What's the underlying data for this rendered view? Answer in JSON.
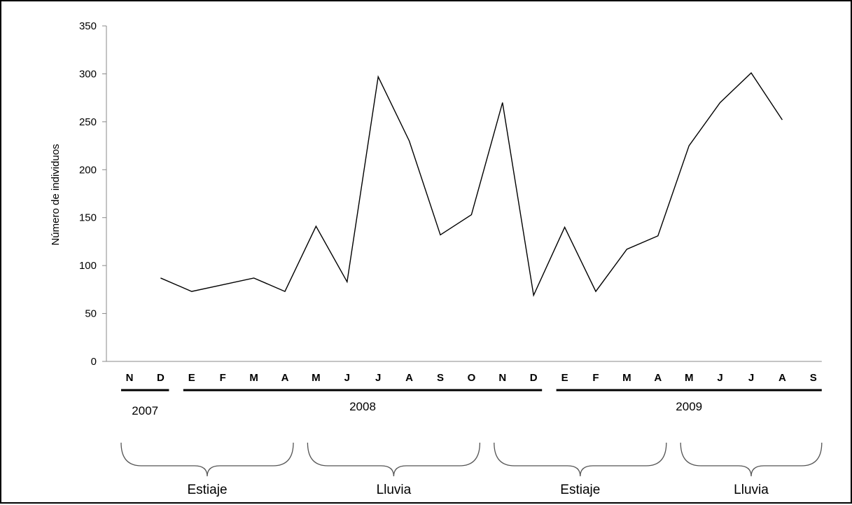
{
  "chart_data": {
    "type": "line",
    "title": "",
    "xlabel": "",
    "ylabel": "Número de individuos",
    "ylim": [
      0,
      350
    ],
    "yticks": [
      0,
      50,
      100,
      150,
      200,
      250,
      300,
      350
    ],
    "grid": false,
    "categories": [
      "N",
      "D",
      "E",
      "F",
      "M",
      "A",
      "M",
      "J",
      "J",
      "A",
      "S",
      "O",
      "N",
      "D",
      "E",
      "F",
      "M",
      "A",
      "M",
      "J",
      "J",
      "A",
      "S"
    ],
    "series": [
      {
        "name": "",
        "values": [
          null,
          87,
          73,
          80,
          87,
          73,
          141,
          83,
          297,
          230,
          132,
          153,
          270,
          69,
          140,
          73,
          117,
          131,
          225,
          270,
          301,
          252,
          null
        ]
      }
    ],
    "years": [
      {
        "label": "2007",
        "start": 0,
        "end": 1
      },
      {
        "label": "2008",
        "start": 2,
        "end": 13
      },
      {
        "label": "2009",
        "start": 14,
        "end": 22
      }
    ],
    "seasons": [
      {
        "label": "Estiaje",
        "start": 0,
        "end": 5
      },
      {
        "label": "Lluvia",
        "start": 6,
        "end": 11
      },
      {
        "label": "Estiaje",
        "start": 12,
        "end": 17
      },
      {
        "label": "Lluvia",
        "start": 18,
        "end": 22
      }
    ]
  }
}
